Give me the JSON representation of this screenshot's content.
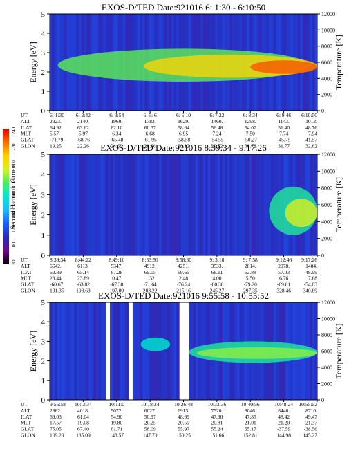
{
  "colors": {
    "background": "#ffffff",
    "colorbar": [
      "#000000",
      "#6a0a8a",
      "#2a2ab8",
      "#1a5cff",
      "#22b8ff",
      "#00e8d0",
      "#40f060",
      "#d8f020",
      "#ffd000",
      "#ff6a00",
      "#e00000"
    ]
  },
  "colorbar": {
    "label": "Second Harmonic Current",
    "ticks": [
      "80",
      "100",
      "120",
      "140",
      "160",
      "180",
      "200",
      "220",
      "240"
    ]
  },
  "chart_data": [
    {
      "type": "heatmap",
      "title": "EXOS-D/TED   Date:921016  6: 1:30 - 6:10:50",
      "ylabel": "Energy [eV]",
      "y2label": "Temperature [K]",
      "ylim": [
        0,
        5
      ],
      "y_ticks": [
        "0",
        "1",
        "2",
        "3",
        "4",
        "5"
      ],
      "y2lim": [
        0,
        12000
      ],
      "y2_ticks": [
        "0",
        "2000",
        "4000",
        "6000",
        "8000",
        "10000",
        "12000"
      ],
      "row_labels": [
        "UT",
        "ALT",
        "ILAT",
        "MLT",
        "GLAT",
        "GLON"
      ],
      "columns": [
        [
          "6: 1:30",
          "2323.",
          "64.92",
          "5.57",
          "-71.79",
          "19.25"
        ],
        [
          "6: 2:42",
          "2140.",
          "63.62",
          "5.97",
          "-68.76",
          "22.26"
        ],
        [
          "6: 3:54",
          "1960.",
          "62.10",
          "6.34",
          "-65.48",
          "24.69"
        ],
        [
          "6: 5: 6",
          "1783.",
          "60.37",
          "6.68",
          "-61.95",
          "26.66"
        ],
        [
          "6: 6:10",
          "1629.",
          "58.64",
          "6.95",
          "-58.58",
          "28.12"
        ],
        [
          "6: 7:22",
          "1460.",
          "56.48",
          "7.24",
          "-54.55",
          "29.52"
        ],
        [
          "6: 8:34",
          "1298.",
          "54.07",
          "7.50",
          "-50.27",
          "30.72"
        ],
        [
          "6: 9:46",
          "1143.",
          "51.40",
          "7.74",
          "-45.75",
          "31.77"
        ],
        [
          "6:10:50",
          "1012.",
          "48.76",
          "7.94",
          "-41.57",
          "32.62"
        ]
      ],
      "features": [
        {
          "x": [
            0.03,
            0.97
          ],
          "y": [
            1.5,
            3.2
          ],
          "level": 0.62
        },
        {
          "x": [
            0.35,
            1.0
          ],
          "y": [
            1.7,
            2.9
          ],
          "level": 0.78
        },
        {
          "x": [
            0.75,
            1.0
          ],
          "y": [
            1.9,
            2.6
          ],
          "level": 0.92
        }
      ]
    },
    {
      "type": "heatmap",
      "title": "EXOS-D/TED   Date:921016  8:39:34 - 9:17:26",
      "ylabel": "Energy [eV]",
      "y2label": "Temperature [K]",
      "ylim": [
        0,
        5
      ],
      "y_ticks": [
        "0",
        "1",
        "2",
        "3",
        "4",
        "5"
      ],
      "y2lim": [
        0,
        12000
      ],
      "y2_ticks": [
        "0",
        "2000",
        "4000",
        "6000",
        "8000",
        "10000",
        "12000"
      ],
      "row_labels": [
        "UT",
        "ALT",
        "ILAT",
        "MLT",
        "GLAT",
        "GLON"
      ],
      "columns": [
        [
          "8:39:34",
          "6642.",
          "62.89",
          "23.44",
          "-60.67",
          "191.35"
        ],
        [
          "8:44:22",
          "6113.",
          "65.14",
          "23.89",
          "-63.82",
          "193.63"
        ],
        [
          "8:49:10",
          "5347.",
          "67.28",
          "0.47",
          "-67.38",
          "197.09"
        ],
        [
          "8:53:50",
          "4912.",
          "69.05",
          "1.32",
          "-71.64",
          "203.22"
        ],
        [
          "8:58:30",
          "4251.",
          "69.65",
          "2.48",
          "-76.24",
          "215.16"
        ],
        [
          "9: 3:18",
          "3533.",
          "68.11",
          "4.00",
          "-80.38",
          "245.27"
        ],
        [
          "9: 7:58",
          "2814.",
          "63.88",
          "5.50",
          "-79.20",
          "297.35"
        ],
        [
          "9:12:46",
          "2078.",
          "57.03",
          "6.76",
          "-69.81",
          "328.46"
        ],
        [
          "9:17:26",
          "1404.",
          "48.99",
          "7.68",
          "-54.83",
          "340.69"
        ]
      ],
      "features": [
        {
          "x": [
            0.82,
            1.0
          ],
          "y": [
            1.0,
            3.4
          ],
          "level": 0.55
        },
        {
          "x": [
            0.88,
            1.0
          ],
          "y": [
            1.4,
            2.8
          ],
          "level": 0.7
        }
      ]
    },
    {
      "type": "heatmap",
      "title": "EXOS-D/TED   Date:921016  9:55:58 - 10:55:52",
      "ylabel": "Energy [eV]",
      "y2label": "Temperature [K]",
      "ylim": [
        0,
        5
      ],
      "y_ticks": [
        "0",
        "1",
        "2",
        "3",
        "4",
        "5"
      ],
      "y2lim": [
        0,
        12000
      ],
      "y2_ticks": [
        "0",
        "2000",
        "4000",
        "6000",
        "8000",
        "10000",
        "12000"
      ],
      "row_labels": [
        "UT",
        "ALT",
        "ILAT",
        "MLT",
        "GLAT",
        "GLON"
      ],
      "columns": [
        [
          "9:55:58",
          "2862.",
          "69.03",
          "17.57",
          "75.05",
          "109.29"
        ],
        [
          "10: 3:34",
          "4018.",
          "61.04",
          "19.08",
          "67.40",
          "135.09"
        ],
        [
          "10:11:0",
          "5072.",
          "54.90",
          "19.80",
          "61.71",
          "143.57"
        ],
        [
          "10:18:34",
          "6027.",
          "50.97",
          "20.25",
          "58.09",
          "147.70"
        ],
        [
          "10:26:48",
          "6913.",
          "48.69",
          "20.59",
          "55.97",
          "150.25"
        ],
        [
          "10:33:36",
          "7520.",
          "47.90",
          "20.81",
          "55.24",
          "151.66"
        ],
        [
          "10:40:56",
          "8046.",
          "47.85",
          "21.01",
          "55.17",
          "152.81"
        ],
        [
          "10:48:24",
          "8446.",
          "48.42",
          "21.20",
          "-37.59",
          "144.98"
        ],
        [
          "10:55:52",
          "8710.",
          "49.47",
          "21.37",
          "-38.56",
          "145.27"
        ]
      ],
      "data_gaps": [
        [
          0.21,
          0.225
        ],
        [
          0.295,
          0.31
        ],
        [
          0.485,
          0.52
        ]
      ],
      "features": [
        {
          "x": [
            0.52,
            1.0
          ],
          "y": [
            1.9,
            3.0
          ],
          "level": 0.55
        },
        {
          "x": [
            0.55,
            1.0
          ],
          "y": [
            2.1,
            2.7
          ],
          "level": 0.65
        },
        {
          "x": [
            0.34,
            0.45
          ],
          "y": [
            2.5,
            3.2
          ],
          "level": 0.5
        }
      ]
    }
  ]
}
